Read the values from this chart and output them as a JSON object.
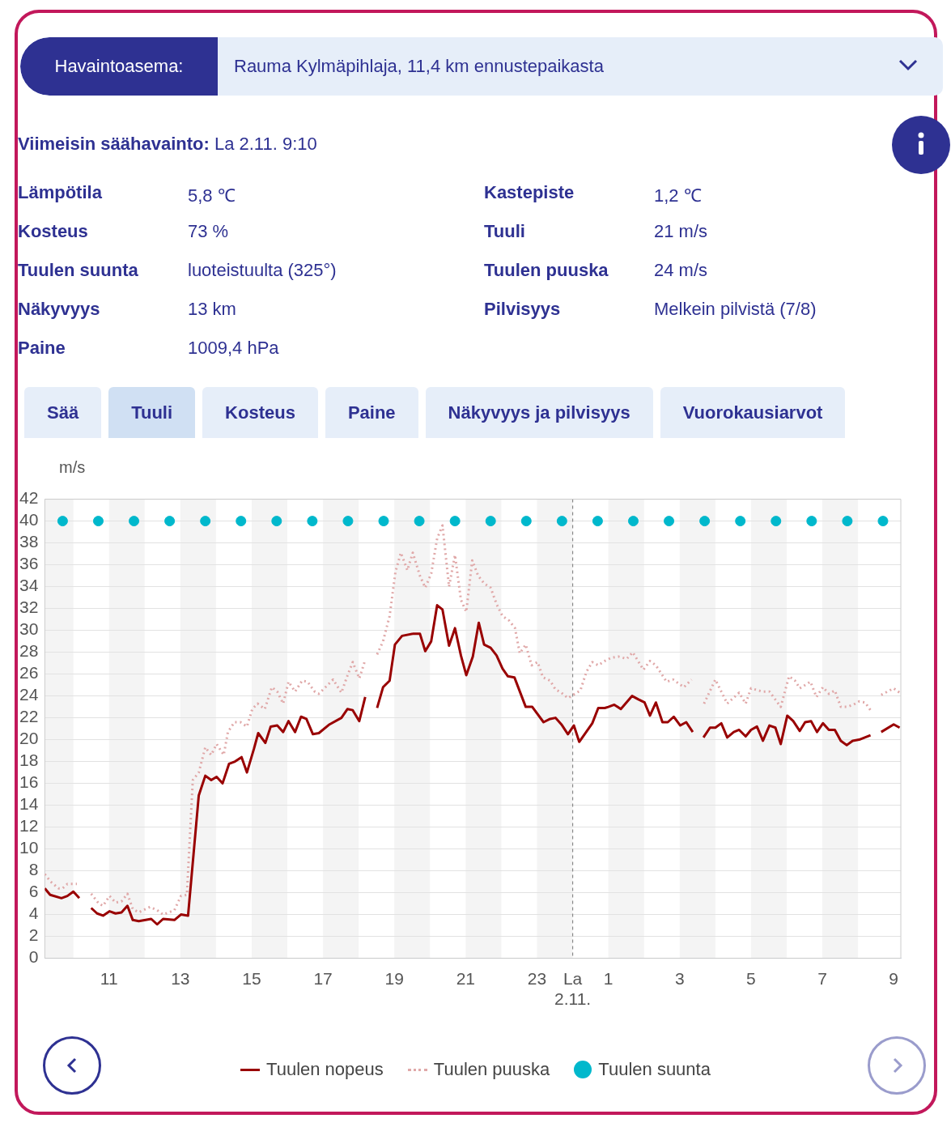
{
  "chart_data": [
    {
      "type": "other",
      "annotations": [
        "Havaintoasema:",
        "Rauma Kylmäpihlaja, 11,4 km ennustepaikasta",
        "Viimeisin säähavainto:",
        "La 2.11. 9:10",
        "Lämpötila",
        "5,8 ℃",
        "Kastepiste",
        "1,2 ℃",
        "Kosteus",
        "73 %",
        "Tuuli",
        "21 m/s",
        "Tuulen suunta",
        "luoteistuulta (325°)",
        "Tuulen puuska",
        "24 m/s",
        "Näkyvyys",
        "13 km",
        "Pilvisyys",
        "Melkein pilvistä (7/8)",
        "Paine",
        "1009,4 hPa",
        "Sää",
        "Tuuli",
        "Kosteus",
        "Paine",
        "Näkyvyys ja pilvisyys",
        "Vuorokausiarvot"
      ]
    },
    {
      "type": "line",
      "ylabel": "m/s",
      "xlim": [
        "--11-01T09:12",
        "--11-02T09:12"
      ],
      "ylim": [
        0,
        42
      ],
      "xticks": [
        {
          "value": "--11-01T11:00",
          "label": "11"
        },
        {
          "value": "--11-01T13:00",
          "label": "13"
        },
        {
          "value": "--11-01T15:00",
          "label": "15"
        },
        {
          "value": "--11-01T17:00",
          "label": "17"
        },
        {
          "value": "--11-01T19:00",
          "label": "19"
        },
        {
          "value": "--11-01T21:00",
          "label": "21"
        },
        {
          "value": "--11-01T23:00",
          "label": "23"
        },
        {
          "value": "--11-02T00:00",
          "label": "La 2.11."
        },
        {
          "value": "--11-02T01:00",
          "label": "1"
        },
        {
          "value": "--11-02T03:00",
          "label": "3"
        },
        {
          "value": "--11-02T05:00",
          "label": "5"
        },
        {
          "value": "--11-02T07:00",
          "label": "7"
        },
        {
          "value": "--11-02T09:00",
          "label": "9"
        }
      ],
      "yticks": [
        0,
        2,
        4,
        6,
        8,
        10,
        12,
        14,
        16,
        18,
        20,
        22,
        24,
        26,
        28,
        30,
        32,
        34,
        36,
        38,
        40,
        42
      ],
      "grid": "y",
      "legend": "bottom",
      "marker": "none",
      "series": [
        {
          "name": "Tuulen nopeus",
          "type": "line",
          "color": "#990000",
          "line_style": "solid",
          "x": [
            "--11-01T09:12",
            "--11-01T09:21",
            "--11-01T09:40",
            "--11-01T09:50",
            "--11-01T10:00",
            "--11-01T10:10",
            "--11-01T10:20",
            "--11-01T10:30",
            "--11-01T10:40",
            "--11-01T10:50",
            "--11-01T11:01",
            "--11-01T11:11",
            "--11-01T11:21",
            "--11-01T11:31",
            "--11-01T11:40",
            "--11-01T11:50",
            "--11-01T12:11",
            "--11-01T12:21",
            "--11-01T12:31",
            "--11-01T12:50",
            "--11-01T13:01",
            "--11-01T13:13",
            "--11-01T13:31",
            "--11-01T13:42",
            "--11-01T13:52",
            "--11-01T14:01",
            "--11-01T14:11",
            "--11-01T14:22",
            "--11-01T14:32",
            "--11-01T14:43",
            "--11-01T14:52",
            "--11-01T15:04",
            "--11-01T15:11",
            "--11-01T15:23",
            "--11-01T15:32",
            "--11-01T15:43",
            "--11-01T15:53",
            "--11-01T16:02",
            "--11-01T16:13",
            "--11-01T16:23",
            "--11-01T16:32",
            "--11-01T16:43",
            "--11-01T16:53",
            "--11-01T17:11",
            "--11-01T17:31",
            "--11-01T17:41",
            "--11-01T17:50",
            "--11-01T18:01",
            "--11-01T18:11",
            "--11-01T18:21",
            "--11-01T18:31",
            "--11-01T18:41",
            "--11-01T18:52",
            "--11-01T19:01",
            "--11-01T19:13",
            "--11-01T19:32",
            "--11-01T19:43",
            "--11-01T19:52",
            "--11-01T20:02",
            "--11-01T20:12",
            "--11-01T20:21",
            "--11-01T20:32",
            "--11-01T20:42",
            "--11-01T20:52",
            "--11-01T21:01",
            "--11-01T21:12",
            "--11-01T21:22",
            "--11-01T21:31",
            "--11-01T21:42",
            "--11-01T21:52",
            "--11-01T22:02",
            "--11-01T22:11",
            "--11-01T22:22",
            "--11-01T22:41",
            "--11-01T22:52",
            "--11-01T23:11",
            "--11-01T23:22",
            "--11-01T23:31",
            "--11-01T23:41",
            "--11-01T23:52",
            "--11-02T00:02",
            "--11-02T00:11",
            "--11-02T00:33",
            "--11-02T00:43",
            "--11-02T00:54",
            "--11-02T01:00",
            "--11-02T01:10",
            "--11-02T01:21",
            "--11-02T01:40",
            "--11-02T01:50",
            "--11-02T02:01",
            "--11-02T02:10",
            "--11-02T02:20",
            "--11-02T02:31",
            "--11-02T02:40",
            "--11-02T02:50",
            "--11-02T03:01",
            "--11-02T03:11",
            "--11-02T03:22",
            "--11-02T03:30",
            "--11-02T03:40",
            "--11-02T03:51",
            "--11-02T04:00",
            "--11-02T04:10",
            "--11-02T04:20",
            "--11-02T04:31",
            "--11-02T04:40",
            "--11-02T04:51",
            "--11-02T05:00",
            "--11-02T05:10",
            "--11-02T05:20",
            "--11-02T05:31",
            "--11-02T05:41",
            "--11-02T05:50",
            "--11-02T06:01",
            "--11-02T06:11",
            "--11-02T06:22",
            "--11-02T06:31",
            "--11-02T06:41",
            "--11-02T06:51",
            "--11-02T07:01",
            "--11-02T07:11",
            "--11-02T07:21",
            "--11-02T07:31",
            "--11-02T07:41",
            "--11-02T07:51",
            "--11-02T08:02",
            "--11-02T08:21",
            "--11-02T08:30",
            "--11-02T08:39",
            "--11-02T09:00",
            "--11-02T09:10"
          ],
          "values": [
            6.4,
            5.8,
            5.5,
            5.7,
            6.1,
            5.5,
            null,
            4.6,
            4.1,
            3.9,
            4.3,
            4.1,
            4.2,
            4.8,
            3.5,
            3.4,
            3.6,
            3.1,
            3.6,
            3.5,
            4.0,
            3.9,
            14.9,
            16.7,
            16.3,
            16.6,
            16.0,
            17.8,
            18.0,
            18.4,
            17.0,
            19.2,
            20.6,
            19.7,
            21.2,
            21.3,
            20.7,
            21.7,
            20.7,
            22.1,
            21.9,
            20.5,
            20.6,
            21.4,
            22.0,
            22.8,
            22.7,
            21.7,
            23.9,
            null,
            22.9,
            24.8,
            25.4,
            28.7,
            29.5,
            29.7,
            29.7,
            28.1,
            29.0,
            32.3,
            31.9,
            28.6,
            30.2,
            27.7,
            25.9,
            27.6,
            30.7,
            28.7,
            28.4,
            27.7,
            26.5,
            25.8,
            25.7,
            23.0,
            23.0,
            21.6,
            21.9,
            22.0,
            21.4,
            20.5,
            21.3,
            19.8,
            21.5,
            22.9,
            22.9,
            23.0,
            23.2,
            22.8,
            24.0,
            23.7,
            23.4,
            22.2,
            23.4,
            21.6,
            21.6,
            22.1,
            21.3,
            21.6,
            20.7,
            null,
            20.2,
            21.1,
            21.1,
            21.5,
            20.2,
            20.7,
            20.9,
            20.3,
            20.9,
            21.2,
            19.9,
            21.3,
            21.1,
            19.6,
            22.2,
            21.7,
            20.8,
            21.6,
            21.7,
            20.7,
            21.5,
            20.9,
            20.9,
            19.9,
            19.5,
            19.9,
            20.0,
            20.4,
            null,
            20.7,
            21.4,
            21.1
          ]
        },
        {
          "name": "Tuulen puuska",
          "type": "line",
          "color": "#e0a8a8",
          "line_style": "dotted",
          "x": [
            "--11-01T09:12",
            "--11-01T09:22",
            "--11-01T09:35",
            "--11-01T09:42",
            "--11-01T09:50",
            "--11-01T10:00",
            "--11-01T10:06",
            "--11-01T10:18",
            "--11-01T10:30",
            "--11-01T10:43",
            "--11-01T10:50",
            "--11-01T11:01",
            "--11-01T11:11",
            "--11-01T11:21",
            "--11-01T11:31",
            "--11-01T11:40",
            "--11-01T11:50",
            "--11-01T12:09",
            "--11-01T12:21",
            "--11-01T12:31",
            "--11-01T12:50",
            "--11-01T13:01",
            "--11-01T13:11",
            "--11-01T13:21",
            "--11-01T13:31",
            "--11-01T13:42",
            "--11-01T13:52",
            "--11-01T14:01",
            "--11-01T14:13",
            "--11-01T14:20",
            "--11-01T14:31",
            "--11-01T14:41",
            "--11-01T14:52",
            "--11-01T15:01",
            "--11-01T15:10",
            "--11-01T15:22",
            "--11-01T15:34",
            "--11-01T15:43",
            "--11-01T15:53",
            "--11-01T16:02",
            "--11-01T16:13",
            "--11-01T16:25",
            "--11-01T16:34",
            "--11-01T16:46",
            "--11-01T16:53",
            "--11-01T17:17",
            "--11-01T17:31",
            "--11-01T17:40",
            "--11-01T17:50",
            "--11-01T18:01",
            "--11-01T18:11",
            "--11-01T18:21",
            "--11-01T18:31",
            "--11-01T18:41",
            "--11-01T18:52",
            "--11-01T19:02",
            "--11-01T19:11",
            "--11-01T19:22",
            "--11-01T19:31",
            "--11-01T19:43",
            "--11-01T19:52",
            "--11-01T20:02",
            "--11-01T20:12",
            "--11-01T20:21",
            "--11-01T20:32",
            "--11-01T20:42",
            "--11-01T20:52",
            "--11-01T21:01",
            "--11-01T21:11",
            "--11-01T21:21",
            "--11-01T21:31",
            "--11-01T21:42",
            "--11-01T21:52",
            "--11-01T22:02",
            "--11-01T22:13",
            "--11-01T22:23",
            "--11-01T22:31",
            "--11-01T22:41",
            "--11-01T22:51",
            "--11-01T23:01",
            "--11-01T23:10",
            "--11-01T23:22",
            "--11-01T23:31",
            "--11-01T23:41",
            "--11-01T23:52",
            "--11-02T00:04",
            "--11-02T00:13",
            "--11-02T00:23",
            "--11-02T00:33",
            "--11-02T00:43",
            "--11-02T00:54",
            "--11-02T01:05",
            "--11-02T01:17",
            "--11-02T01:31",
            "--11-02T01:41",
            "--11-02T01:59",
            "--11-02T02:10",
            "--11-02T02:20",
            "--11-02T02:38",
            "--11-02T02:49",
            "--11-02T03:07",
            "--11-02T03:20",
            "--11-02T03:30",
            "--11-02T03:41",
            "--11-02T04:00",
            "--11-02T04:20",
            "--11-02T04:40",
            "--11-02T04:51",
            "--11-02T05:00",
            "--11-02T05:19",
            "--11-02T05:31",
            "--11-02T05:50",
            "--11-02T06:04",
            "--11-02T06:14",
            "--11-02T06:22",
            "--11-02T06:40",
            "--11-02T06:50",
            "--11-02T07:01",
            "--11-02T07:11",
            "--11-02T07:21",
            "--11-02T07:31",
            "--11-02T07:42",
            "--11-02T07:52",
            "--11-02T08:02",
            "--11-02T08:12",
            "--11-02T08:21",
            "--11-02T08:30",
            "--11-02T08:39",
            "--11-02T09:00",
            "--11-02T09:10"
          ],
          "values": [
            7.7,
            7.0,
            6.4,
            6.4,
            6.8,
            6.8,
            6.8,
            null,
            5.9,
            5.0,
            4.8,
            5.7,
            5.1,
            5.2,
            5.9,
            4.5,
            4.2,
            4.7,
            4.4,
            4.0,
            4.4,
            5.7,
            5.8,
            16.3,
            17.0,
            19.3,
            18.6,
            19.6,
            18.6,
            20.7,
            21.6,
            21.6,
            21.2,
            22.8,
            23.3,
            22.8,
            24.8,
            24.4,
            23.3,
            25.3,
            24.4,
            25.4,
            25.3,
            24.4,
            24.2,
            25.5,
            24.3,
            25.7,
            27.1,
            25.6,
            27.3,
            null,
            27.8,
            29.0,
            31.3,
            35.4,
            37.1,
            35.5,
            37.1,
            35.0,
            33.9,
            35.2,
            38.4,
            39.6,
            34.0,
            36.9,
            32.8,
            31.7,
            36.4,
            35.0,
            34.3,
            33.9,
            32.4,
            31.3,
            30.9,
            30.2,
            27.9,
            28.7,
            26.8,
            27.1,
            25.7,
            25.4,
            24.6,
            24.3,
            23.8,
            24.2,
            24.5,
            26.2,
            27.1,
            26.8,
            27.2,
            27.5,
            27.6,
            27.4,
            28.0,
            26.4,
            27.2,
            26.8,
            25.3,
            25.5,
            24.8,
            25.5,
            null,
            23.3,
            25.5,
            23.3,
            24.3,
            23.3,
            24.7,
            24.4,
            24.4,
            23.0,
            25.8,
            25.4,
            24.7,
            25.3,
            23.9,
            24.8,
            24.2,
            24.5,
            23.0,
            23.0,
            23.2,
            23.5,
            23.4,
            22.7,
            null,
            24.1,
            24.7,
            24.3
          ]
        },
        {
          "name": "Tuulen suunta",
          "type": "scatter",
          "color": "#00b8cc",
          "marker": "circle",
          "x": [
            "--11-01T09:42",
            "--11-01T10:42",
            "--11-01T11:42",
            "--11-01T12:42",
            "--11-01T13:42",
            "--11-01T14:42",
            "--11-01T15:42",
            "--11-01T16:42",
            "--11-01T17:42",
            "--11-01T18:42",
            "--11-01T19:42",
            "--11-01T20:42",
            "--11-01T21:42",
            "--11-01T22:42",
            "--11-01T23:42",
            "--11-02T00:42",
            "--11-02T01:42",
            "--11-02T02:42",
            "--11-02T03:42",
            "--11-02T04:42",
            "--11-02T05:42",
            "--11-02T06:42",
            "--11-02T07:42",
            "--11-02T08:42"
          ],
          "values": [
            40,
            40,
            40,
            40,
            40,
            40,
            40,
            40,
            40,
            40,
            40,
            40,
            40,
            40,
            40,
            40,
            40,
            40,
            40,
            40,
            40,
            40,
            40,
            40
          ]
        }
      ],
      "ref_lines": [
        {
          "axis": "x",
          "value": "--11-02T00:00",
          "color": "#888888",
          "line_style": "dashed"
        }
      ],
      "bands": [
        {
          "axis": "x",
          "from": "--11-01T09:12",
          "to": "--11-01T10:00",
          "color": "#f4f4f4"
        },
        {
          "axis": "x",
          "from": "--11-01T11:00",
          "to": "--11-01T12:00",
          "color": "#f4f4f4"
        },
        {
          "axis": "x",
          "from": "--11-01T13:00",
          "to": "--11-01T14:00",
          "color": "#f4f4f4"
        },
        {
          "axis": "x",
          "from": "--11-01T15:00",
          "to": "--11-01T16:00",
          "color": "#f4f4f4"
        },
        {
          "axis": "x",
          "from": "--11-01T17:00",
          "to": "--11-01T18:00",
          "color": "#f4f4f4"
        },
        {
          "axis": "x",
          "from": "--11-01T19:00",
          "to": "--11-01T20:00",
          "color": "#f4f4f4"
        },
        {
          "axis": "x",
          "from": "--11-01T21:00",
          "to": "--11-01T22:00",
          "color": "#f4f4f4"
        },
        {
          "axis": "x",
          "from": "--11-01T23:00",
          "to": "--11-02T00:00",
          "color": "#f4f4f4"
        },
        {
          "axis": "x",
          "from": "--11-02T01:00",
          "to": "--11-02T02:00",
          "color": "#f4f4f4"
        },
        {
          "axis": "x",
          "from": "--11-02T03:00",
          "to": "--11-02T04:00",
          "color": "#f4f4f4"
        },
        {
          "axis": "x",
          "from": "--11-02T05:00",
          "to": "--11-02T06:00",
          "color": "#f4f4f4"
        },
        {
          "axis": "x",
          "from": "--11-02T07:00",
          "to": "--11-02T08:00",
          "color": "#f4f4f4"
        }
      ]
    }
  ]
}
